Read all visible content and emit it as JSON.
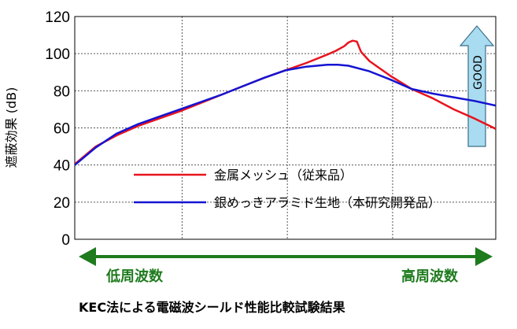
{
  "chart_data": {
    "type": "line",
    "title": "",
    "ylabel": "遮蔽効果 (dB)",
    "xlabel": "",
    "ylim": [
      0,
      120
    ],
    "yticks": [
      0,
      20,
      40,
      60,
      80,
      100,
      120
    ],
    "xlim": [
      0,
      100
    ],
    "xgrid": [
      25.5,
      50.5,
      75.5
    ],
    "grid": true,
    "legend_position": "lower-center",
    "series": [
      {
        "name": "金属メッシュ（従来品）",
        "color": "#e8141e",
        "x": [
          0,
          5,
          10,
          15,
          20,
          25,
          30,
          35,
          40,
          45,
          50,
          55,
          60,
          62,
          64,
          65,
          66,
          67,
          68,
          70,
          75,
          80,
          85,
          90,
          95,
          100
        ],
        "y": [
          40.5,
          50,
          56,
          61,
          65,
          69,
          73.5,
          78,
          82.5,
          87,
          91,
          95,
          99.5,
          101.5,
          104,
          106,
          107,
          106.5,
          101,
          96,
          88,
          81,
          76,
          70,
          65,
          59.5
        ]
      },
      {
        "name": "銀めっきアラミド生地（本研究開発品）",
        "color": "#1414d2",
        "x": [
          0,
          5,
          10,
          15,
          20,
          25,
          30,
          35,
          40,
          45,
          50,
          55,
          60,
          62.5,
          65,
          70,
          75,
          80,
          85,
          90,
          95,
          100
        ],
        "y": [
          40,
          49.5,
          57,
          62,
          66,
          70,
          74,
          78,
          82.5,
          87,
          91,
          93,
          94,
          94,
          93.5,
          90.5,
          86,
          81,
          78.5,
          76.5,
          74.5,
          72
        ]
      }
    ]
  },
  "good_label": "GOOD",
  "low_freq_label": "低周波数",
  "high_freq_label": "高周波数",
  "caption": "KEC法による電磁波シールド性能比較試験結果",
  "colors": {
    "arrow_green": "#1e7b1e",
    "good_fill": "#a9dcf0",
    "good_stroke": "#3b6f8a"
  }
}
